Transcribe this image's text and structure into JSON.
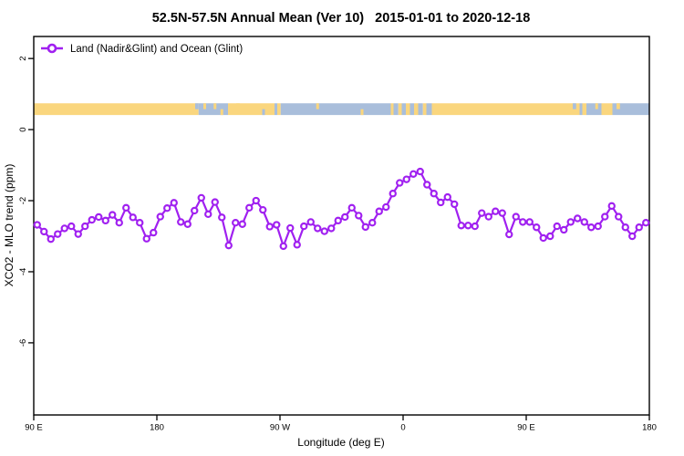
{
  "chart_data": {
    "type": "line",
    "title": "52.5N-57.5N Annual Mean (Ver 10)   2015-01-01 to 2020-12-18",
    "xlabel": "Longitude (deg E)",
    "ylabel": "XCO2 - MLO trend (ppm)",
    "xlim": [
      90,
      540
    ],
    "ylim": [
      -8.03,
      2.62
    ],
    "grid": false,
    "legend_position": "top-left-inside",
    "x_ticks": [
      {
        "v": 90,
        "label": "90 E"
      },
      {
        "v": 180,
        "label": "180"
      },
      {
        "v": 270,
        "label": "90 W"
      },
      {
        "v": 360,
        "label": "0"
      },
      {
        "v": 450,
        "label": "90 E"
      },
      {
        "v": 540,
        "label": "180"
      }
    ],
    "y_ticks": [
      {
        "v": 2,
        "label": "2"
      },
      {
        "v": 0,
        "label": "0"
      },
      {
        "v": -2,
        "label": "-2"
      },
      {
        "v": -4,
        "label": "-4"
      },
      {
        "v": -6,
        "label": "-6"
      }
    ],
    "colors": {
      "line": "#A020F0",
      "marker_fill": "#ffffff",
      "land": "#FAD67E",
      "ocean": "#A9BEDB",
      "axis": "#000000"
    },
    "series": [
      {
        "name": "Land (Nadir&Glint) and Ocean (Glint)",
        "marker": "open-circle",
        "x": [
          92.5,
          97.5,
          102.5,
          107.5,
          112.5,
          117.5,
          122.5,
          127.5,
          132.5,
          137.5,
          142.5,
          147.5,
          152.5,
          157.5,
          162.5,
          167.5,
          172.5,
          177.5,
          182.5,
          187.5,
          192.5,
          197.5,
          202.5,
          207.5,
          212.5,
          217.5,
          222.5,
          227.5,
          232.5,
          237.5,
          242.5,
          247.5,
          252.5,
          257.5,
          262.5,
          267.5,
          272.5,
          277.5,
          282.5,
          287.5,
          292.5,
          297.5,
          302.5,
          307.5,
          312.5,
          317.5,
          322.5,
          327.5,
          332.5,
          337.5,
          342.5,
          347.5,
          352.5,
          357.5,
          362.5,
          367.5,
          372.5,
          377.5,
          382.5,
          387.5,
          392.5,
          397.5,
          402.5,
          407.5,
          412.5,
          417.5,
          422.5,
          427.5,
          432.5,
          437.5,
          442.5,
          447.5,
          452.5,
          457.5,
          462.5,
          467.5,
          472.5,
          477.5,
          482.5,
          487.5,
          492.5,
          497.5,
          502.5,
          507.5,
          512.5,
          517.5,
          522.5,
          527.5,
          532.5,
          537.5
        ],
        "y": [
          -2.68,
          -2.87,
          -3.08,
          -2.94,
          -2.78,
          -2.72,
          -2.94,
          -2.72,
          -2.54,
          -2.46,
          -2.56,
          -2.4,
          -2.62,
          -2.2,
          -2.47,
          -2.62,
          -3.07,
          -2.9,
          -2.45,
          -2.21,
          -2.06,
          -2.6,
          -2.66,
          -2.28,
          -1.92,
          -2.38,
          -2.04,
          -2.47,
          -3.26,
          -2.62,
          -2.66,
          -2.2,
          -2.0,
          -2.26,
          -2.73,
          -2.68,
          -3.28,
          -2.77,
          -3.24,
          -2.72,
          -2.6,
          -2.78,
          -2.86,
          -2.78,
          -2.56,
          -2.46,
          -2.2,
          -2.42,
          -2.74,
          -2.62,
          -2.3,
          -2.18,
          -1.8,
          -1.5,
          -1.4,
          -1.25,
          -1.18,
          -1.55,
          -1.8,
          -2.05,
          -1.9,
          -2.1,
          -2.7,
          -2.7,
          -2.72,
          -2.35,
          -2.45,
          -2.3,
          -2.35,
          -2.95,
          -2.45,
          -2.6,
          -2.6,
          -2.75,
          -3.05,
          -3.0,
          -2.72,
          -2.82,
          -2.6,
          -2.5,
          -2.6,
          -2.75,
          -2.72,
          -2.45,
          -2.15,
          -2.45,
          -2.75,
          -3.0,
          -2.75,
          -2.62
        ]
      }
    ],
    "map_band": {
      "y_range_ppm": [
        0.41,
        0.74
      ],
      "segments": [
        {
          "x": [
            90,
            210.5
          ],
          "color": "land"
        },
        {
          "x": [
            210.5,
            232
          ],
          "color": "ocean"
        },
        {
          "x": [
            232,
            266
          ],
          "color": "land"
        },
        {
          "x": [
            266,
            268
          ],
          "color": "ocean"
        },
        {
          "x": [
            268,
            270.5
          ],
          "color": "land"
        },
        {
          "x": [
            270.5,
            351
          ],
          "color": "ocean"
        },
        {
          "x": [
            351,
            353
          ],
          "color": "land"
        },
        {
          "x": [
            353,
            356.5
          ],
          "color": "ocean"
        },
        {
          "x": [
            356.5,
            359
          ],
          "color": "land"
        },
        {
          "x": [
            359,
            362
          ],
          "color": "ocean"
        },
        {
          "x": [
            362,
            365
          ],
          "color": "land"
        },
        {
          "x": [
            365,
            368
          ],
          "color": "ocean"
        },
        {
          "x": [
            368,
            371
          ],
          "color": "land"
        },
        {
          "x": [
            371,
            374.5
          ],
          "color": "ocean"
        },
        {
          "x": [
            374.5,
            377
          ],
          "color": "land"
        },
        {
          "x": [
            377,
            381
          ],
          "color": "ocean"
        },
        {
          "x": [
            381,
            489
          ],
          "color": "land"
        },
        {
          "x": [
            489,
            491
          ],
          "color": "ocean"
        },
        {
          "x": [
            491,
            494
          ],
          "color": "land"
        },
        {
          "x": [
            494,
            505
          ],
          "color": "ocean"
        },
        {
          "x": [
            505,
            513
          ],
          "color": "land"
        },
        {
          "x": [
            513,
            540
          ],
          "color": "ocean"
        }
      ],
      "specks": [
        {
          "x": [
            208,
            210.5
          ],
          "pos": "top",
          "color": "ocean"
        },
        {
          "x": [
            214,
            216
          ],
          "pos": "top",
          "color": "land"
        },
        {
          "x": [
            221.5,
            223.5
          ],
          "pos": "top",
          "color": "land"
        },
        {
          "x": [
            226.5,
            228.5
          ],
          "pos": "bottom",
          "color": "land"
        },
        {
          "x": [
            238,
            240.5
          ],
          "pos": "top",
          "color": "land"
        },
        {
          "x": [
            257,
            259
          ],
          "pos": "bottom",
          "color": "ocean"
        },
        {
          "x": [
            296.5,
            298.5
          ],
          "pos": "top",
          "color": "land"
        },
        {
          "x": [
            329,
            331
          ],
          "pos": "bottom",
          "color": "land"
        },
        {
          "x": [
            484,
            486.5
          ],
          "pos": "top",
          "color": "ocean"
        },
        {
          "x": [
            500.5,
            502.5
          ],
          "pos": "top",
          "color": "land"
        },
        {
          "x": [
            516,
            518.5
          ],
          "pos": "top",
          "color": "land"
        }
      ]
    }
  }
}
